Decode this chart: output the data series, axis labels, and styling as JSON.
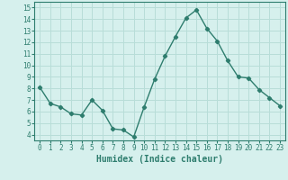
{
  "x": [
    0,
    1,
    2,
    3,
    4,
    5,
    6,
    7,
    8,
    9,
    10,
    11,
    12,
    13,
    14,
    15,
    16,
    17,
    18,
    19,
    20,
    21,
    22,
    23
  ],
  "y": [
    8.1,
    6.7,
    6.4,
    5.8,
    5.7,
    7.0,
    6.1,
    4.5,
    4.4,
    3.8,
    6.4,
    8.8,
    10.8,
    12.5,
    14.1,
    14.8,
    13.2,
    12.1,
    10.4,
    9.0,
    8.9,
    7.9,
    7.2,
    6.5
  ],
  "line_color": "#2e7d6e",
  "marker": "D",
  "marker_size": 2.2,
  "background_color": "#d6f0ed",
  "grid_color": "#b8ddd8",
  "xlabel": "Humidex (Indice chaleur)",
  "ylabel": "",
  "ylim": [
    3.5,
    15.5
  ],
  "xlim": [
    -0.5,
    23.5
  ],
  "yticks": [
    4,
    5,
    6,
    7,
    8,
    9,
    10,
    11,
    12,
    13,
    14,
    15
  ],
  "xticks": [
    0,
    1,
    2,
    3,
    4,
    5,
    6,
    7,
    8,
    9,
    10,
    11,
    12,
    13,
    14,
    15,
    16,
    17,
    18,
    19,
    20,
    21,
    22,
    23
  ],
  "tick_color": "#2e7d6e",
  "label_color": "#2e7d6e",
  "axis_color": "#2e7d6e",
  "xlabel_fontsize": 7.0,
  "tick_fontsize": 5.5,
  "line_width": 1.0
}
